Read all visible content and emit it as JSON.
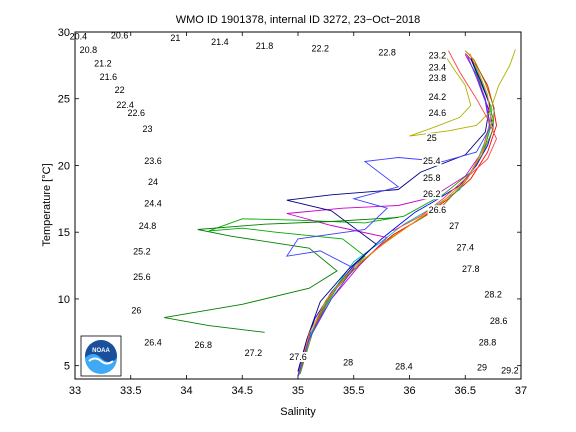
{
  "chart_data": {
    "type": "line",
    "title": "WMO ID 1901378, internal ID 3272, 23−Oct−2018",
    "xlabel": "Salinity",
    "ylabel": "Temperature [°C]",
    "xlim": [
      33,
      37
    ],
    "ylim": [
      4,
      30
    ],
    "x_ticks": [
      33,
      33.5,
      34,
      34.5,
      35,
      35.5,
      36,
      36.5,
      37
    ],
    "x_tick_labels": [
      "33",
      "33.5",
      "34",
      "34.5",
      "35",
      "35.5",
      "36",
      "36.5",
      "37"
    ],
    "y_ticks": [
      5,
      10,
      15,
      20,
      25,
      30
    ],
    "y_tick_labels": [
      "5",
      "10",
      "15",
      "20",
      "25",
      "30"
    ],
    "grid": false,
    "logo": {
      "text": "NOAA",
      "color": "#1a4f9c"
    },
    "isopycnals": {
      "color": "#000000",
      "levels": [
        "20.4",
        "20.6",
        "20.8",
        "21",
        "21.2",
        "21.4",
        "21.6",
        "21.8",
        "22",
        "22.2",
        "22.4",
        "22.6",
        "22.8",
        "23",
        "23.2",
        "23.4",
        "23.6",
        "23.8",
        "24",
        "24.2",
        "24.4",
        "24.6",
        "24.8",
        "25",
        "25.2",
        "25.4",
        "25.6",
        "25.8",
        "26",
        "26.2",
        "26.4",
        "26.6",
        "26.8",
        "27",
        "27.2",
        "27.4",
        "27.6",
        "27.8",
        "28",
        "28.2",
        "28.4",
        "28.6",
        "28.8",
        "29",
        "29.2"
      ],
      "labels": [
        {
          "text": "20.4",
          "s": 33.03,
          "t": 29.6
        },
        {
          "text": "20.6",
          "s": 33.4,
          "t": 29.7
        },
        {
          "text": "21",
          "s": 33.9,
          "t": 29.5
        },
        {
          "text": "21.4",
          "s": 34.3,
          "t": 29.2
        },
        {
          "text": "21.8",
          "s": 34.7,
          "t": 28.9
        },
        {
          "text": "22.2",
          "s": 35.2,
          "t": 28.7
        },
        {
          "text": "22.8",
          "s": 35.8,
          "t": 28.4
        },
        {
          "text": "23.2",
          "s": 36.25,
          "t": 28.2
        },
        {
          "text": "20.8",
          "s": 33.12,
          "t": 28.6
        },
        {
          "text": "21.2",
          "s": 33.25,
          "t": 27.6
        },
        {
          "text": "21.6",
          "s": 33.3,
          "t": 26.6
        },
        {
          "text": "22",
          "s": 33.4,
          "t": 25.6
        },
        {
          "text": "22.4",
          "s": 33.45,
          "t": 24.5
        },
        {
          "text": "22.6",
          "s": 33.55,
          "t": 23.9
        },
        {
          "text": "23",
          "s": 33.65,
          "t": 22.7
        },
        {
          "text": "23.6",
          "s": 33.7,
          "t": 20.3
        },
        {
          "text": "24",
          "s": 33.7,
          "t": 18.7
        },
        {
          "text": "24.4",
          "s": 33.7,
          "t": 17.1
        },
        {
          "text": "24.8",
          "s": 33.65,
          "t": 15.4
        },
        {
          "text": "25.2",
          "s": 33.6,
          "t": 13.5
        },
        {
          "text": "25.6",
          "s": 33.6,
          "t": 11.6
        },
        {
          "text": "26",
          "s": 33.55,
          "t": 9.1
        },
        {
          "text": "26.4",
          "s": 33.7,
          "t": 6.7
        },
        {
          "text": "26.8",
          "s": 34.15,
          "t": 6.5
        },
        {
          "text": "27.2",
          "s": 34.6,
          "t": 5.9
        },
        {
          "text": "27.6",
          "s": 35.0,
          "t": 5.6
        },
        {
          "text": "28",
          "s": 35.45,
          "t": 5.2
        },
        {
          "text": "28.4",
          "s": 35.95,
          "t": 4.9
        },
        {
          "text": "29",
          "s": 36.65,
          "t": 4.8
        },
        {
          "text": "29.2",
          "s": 36.9,
          "t": 4.6
        },
        {
          "text": "28.8",
          "s": 36.7,
          "t": 6.7
        },
        {
          "text": "28.6",
          "s": 36.8,
          "t": 8.3
        },
        {
          "text": "28.2",
          "s": 36.75,
          "t": 10.3
        },
        {
          "text": "27.8",
          "s": 36.55,
          "t": 12.2
        },
        {
          "text": "27.4",
          "s": 36.5,
          "t": 13.8
        },
        {
          "text": "27",
          "s": 36.4,
          "t": 15.4
        },
        {
          "text": "26.6",
          "s": 36.25,
          "t": 16.6
        },
        {
          "text": "26.2",
          "s": 36.2,
          "t": 17.8
        },
        {
          "text": "25.8",
          "s": 36.2,
          "t": 19.0
        },
        {
          "text": "25.4",
          "s": 36.2,
          "t": 20.3
        },
        {
          "text": "25",
          "s": 36.2,
          "t": 22.0
        },
        {
          "text": "24.6",
          "s": 36.25,
          "t": 23.9
        },
        {
          "text": "24.2",
          "s": 36.25,
          "t": 25.1
        },
        {
          "text": "23.8",
          "s": 36.25,
          "t": 26.5
        },
        {
          "text": "23.4",
          "s": 36.25,
          "t": 27.3
        }
      ]
    },
    "series": [
      {
        "color": "#0000ff",
        "points": [
          [
            35.0,
            4.2
          ],
          [
            35.05,
            6
          ],
          [
            35.15,
            8.5
          ],
          [
            35.3,
            10.5
          ],
          [
            35.5,
            12.5
          ],
          [
            35.75,
            14.5
          ],
          [
            35.9,
            15.5
          ],
          [
            36.05,
            16.5
          ],
          [
            36.2,
            17.2
          ],
          [
            36.45,
            18.5
          ],
          [
            36.6,
            20
          ],
          [
            36.7,
            21.5
          ],
          [
            36.75,
            22.8
          ],
          [
            36.72,
            24
          ],
          [
            36.65,
            25.5
          ],
          [
            36.6,
            27
          ],
          [
            36.55,
            28.2
          ]
        ]
      },
      {
        "color": "#ff0000",
        "points": [
          [
            35.0,
            4.3
          ],
          [
            35.08,
            6.5
          ],
          [
            35.2,
            9
          ],
          [
            35.35,
            11
          ],
          [
            35.6,
            13
          ],
          [
            35.85,
            14.8
          ],
          [
            36.1,
            16
          ],
          [
            36.35,
            17.5
          ],
          [
            36.55,
            19
          ],
          [
            36.7,
            21
          ],
          [
            36.78,
            23
          ],
          [
            36.75,
            24.5
          ],
          [
            36.7,
            26
          ],
          [
            36.6,
            27.5
          ],
          [
            36.5,
            28.4
          ]
        ]
      },
      {
        "color": "#00aa00",
        "points": [
          [
            35.02,
            4.4
          ],
          [
            35.1,
            7
          ],
          [
            35.25,
            9.5
          ],
          [
            35.4,
            11.5
          ],
          [
            35.6,
            13.2
          ],
          [
            35.4,
            14.5
          ],
          [
            34.8,
            15
          ],
          [
            34.5,
            15.3
          ],
          [
            34.2,
            15.1
          ],
          [
            34.5,
            16
          ],
          [
            35.0,
            15.9
          ],
          [
            35.6,
            15.7
          ],
          [
            35.95,
            16.2
          ],
          [
            36.3,
            17.8
          ],
          [
            36.55,
            19.5
          ],
          [
            36.68,
            21.5
          ],
          [
            36.75,
            23.5
          ],
          [
            36.7,
            25
          ],
          [
            36.62,
            26.5
          ],
          [
            36.55,
            28
          ]
        ]
      },
      {
        "color": "#cc00cc",
        "points": [
          [
            35.0,
            4.5
          ],
          [
            35.1,
            7.2
          ],
          [
            35.3,
            10
          ],
          [
            35.55,
            12.5
          ],
          [
            35.8,
            14.6
          ],
          [
            35.3,
            15.5
          ],
          [
            34.9,
            16.4
          ],
          [
            35.4,
            16.8
          ],
          [
            35.9,
            17
          ],
          [
            36.2,
            17.6
          ],
          [
            36.5,
            19.2
          ],
          [
            36.65,
            21
          ],
          [
            36.72,
            23.2
          ],
          [
            36.68,
            25
          ],
          [
            36.6,
            26.8
          ],
          [
            36.5,
            28.3
          ]
        ]
      },
      {
        "color": "#00bfbf",
        "points": [
          [
            35.01,
            4.3
          ],
          [
            35.12,
            7.5
          ],
          [
            35.28,
            10.2
          ],
          [
            35.5,
            12.8
          ],
          [
            35.75,
            14.3
          ],
          [
            35.95,
            15.6
          ],
          [
            36.2,
            16.8
          ],
          [
            36.45,
            18.2
          ],
          [
            36.6,
            20.2
          ],
          [
            36.7,
            22.3
          ],
          [
            36.74,
            24.2
          ],
          [
            36.66,
            26
          ],
          [
            36.58,
            27.6
          ]
        ]
      },
      {
        "color": "#000080",
        "points": [
          [
            35.0,
            4.6
          ],
          [
            35.08,
            7
          ],
          [
            35.2,
            9.8
          ],
          [
            35.45,
            12.2
          ],
          [
            35.7,
            14.1
          ],
          [
            35.3,
            16.6
          ],
          [
            34.9,
            17.4
          ],
          [
            35.3,
            17.8
          ],
          [
            35.9,
            18.2
          ],
          [
            36.1,
            19.5
          ],
          [
            36.5,
            20.8
          ],
          [
            36.68,
            22.5
          ],
          [
            36.72,
            24.5
          ],
          [
            36.64,
            26.3
          ],
          [
            36.55,
            28
          ]
        ]
      },
      {
        "color": "#808000",
        "points": [
          [
            35.02,
            4.4
          ],
          [
            35.15,
            8
          ],
          [
            35.3,
            10.4
          ],
          [
            35.55,
            12.6
          ],
          [
            35.8,
            14.4
          ],
          [
            36.0,
            15.5
          ],
          [
            36.3,
            17
          ],
          [
            36.5,
            18.8
          ],
          [
            36.65,
            20.8
          ],
          [
            36.75,
            22.7
          ],
          [
            36.76,
            24.3
          ],
          [
            36.68,
            26.2
          ],
          [
            36.58,
            27.9
          ],
          [
            36.5,
            28.6
          ]
        ]
      },
      {
        "color": "#ff8000",
        "points": [
          [
            35.01,
            4.5
          ],
          [
            35.1,
            7.4
          ],
          [
            35.25,
            9.9
          ],
          [
            35.5,
            12.4
          ],
          [
            35.78,
            14.2
          ],
          [
            36.05,
            15.8
          ],
          [
            36.3,
            17.3
          ],
          [
            36.52,
            19
          ],
          [
            36.66,
            21.2
          ],
          [
            36.73,
            23.4
          ],
          [
            36.7,
            25.3
          ],
          [
            36.62,
            27
          ],
          [
            36.54,
            28.4
          ]
        ]
      },
      {
        "color": "#008000",
        "points": [
          [
            34.7,
            7.5
          ],
          [
            34.2,
            8.0
          ],
          [
            33.8,
            8.6
          ],
          [
            34.5,
            9.6
          ],
          [
            35.1,
            10.8
          ],
          [
            35.35,
            12.1
          ],
          [
            35.1,
            13.8
          ],
          [
            34.4,
            14.7
          ],
          [
            34.1,
            15.2
          ],
          [
            34.7,
            15.6
          ],
          [
            35.3,
            15.8
          ],
          [
            35.9,
            16.1
          ]
        ]
      },
      {
        "color": "#4040ff",
        "points": [
          [
            35.0,
            4.2
          ],
          [
            35.1,
            7
          ],
          [
            35.3,
            10
          ],
          [
            35.5,
            12.3
          ],
          [
            35.2,
            13.6
          ],
          [
            34.9,
            13.2
          ],
          [
            35.0,
            14.5
          ],
          [
            35.6,
            15.2
          ],
          [
            35.8,
            16.8
          ],
          [
            35.5,
            17.5
          ],
          [
            35.9,
            18.4
          ],
          [
            35.6,
            20.3
          ],
          [
            35.9,
            20.6
          ],
          [
            36.3,
            20.3
          ],
          [
            36.6,
            21
          ],
          [
            36.72,
            22.8
          ],
          [
            36.68,
            24.8
          ],
          [
            36.6,
            26.6
          ],
          [
            36.52,
            28.2
          ]
        ]
      },
      {
        "color": "#b0b000",
        "points": [
          [
            36.3,
            28.5
          ],
          [
            36.4,
            27.2
          ],
          [
            36.5,
            26
          ],
          [
            36.55,
            24.5
          ],
          [
            36.45,
            23.6
          ],
          [
            36.2,
            22.8
          ],
          [
            36.0,
            22.2
          ],
          [
            36.35,
            22.6
          ],
          [
            36.6,
            23
          ],
          [
            36.72,
            24
          ],
          [
            36.8,
            26
          ],
          [
            36.9,
            27.5
          ],
          [
            36.95,
            28.7
          ]
        ]
      },
      {
        "color": "#ff4040",
        "points": [
          [
            36.35,
            28.6
          ],
          [
            36.45,
            27
          ],
          [
            36.6,
            25
          ],
          [
            36.7,
            23.5
          ],
          [
            36.78,
            22
          ],
          [
            36.7,
            20.5
          ],
          [
            36.5,
            19
          ],
          [
            36.3,
            17.5
          ],
          [
            36.1,
            16.2
          ],
          [
            35.85,
            15.1
          ]
        ]
      }
    ]
  }
}
